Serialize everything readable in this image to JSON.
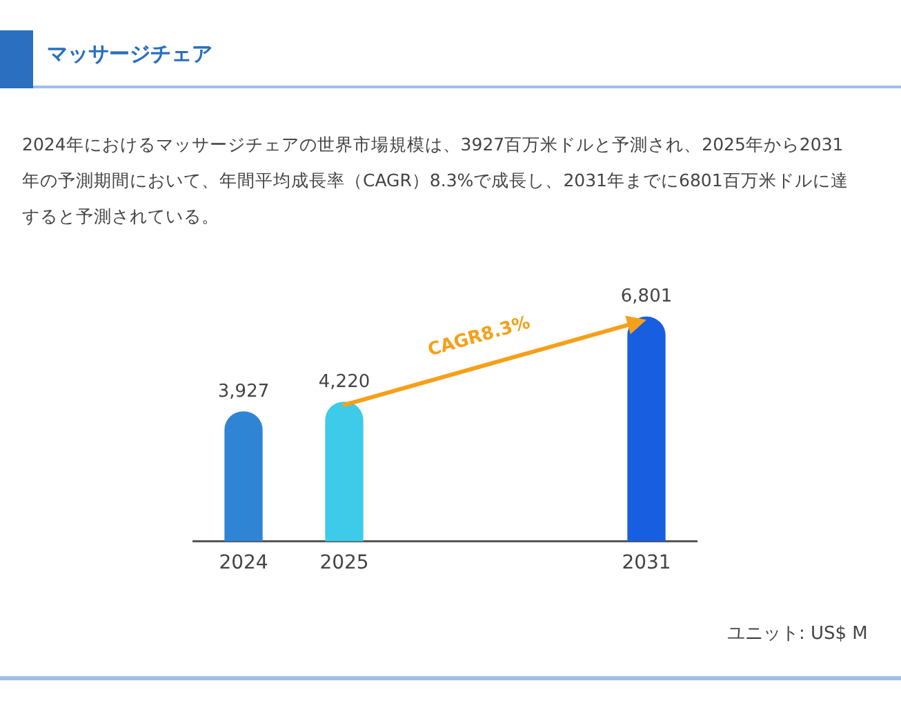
{
  "chart_data": {
    "type": "bar",
    "title": "マッサージチェア",
    "subtitle": "2024年におけるマッサージチェアの世界市場規模は、3927百万米ドルと予測され、2025年から2031年の予測期間において、年間平均成長率（CAGR）8.3%で成長し、2031年までに6801百万米ドルに達すると予測されている。",
    "categories": [
      "2024",
      "2025",
      null,
      null,
      "2031"
    ],
    "values": [
      3927,
      4220,
      null,
      null,
      6801
    ],
    "colors": [
      "#2f84d4",
      "#3ecbe9",
      "#2f84d4",
      "#2f84d4",
      "#185ee0"
    ],
    "value_labels": [
      "3,927",
      "4,220",
      null,
      null,
      "6,801"
    ],
    "annotations": [
      "CAGR8.3%",
      "ユニット: US$ M"
    ],
    "grid": false,
    "legend": false
  }
}
